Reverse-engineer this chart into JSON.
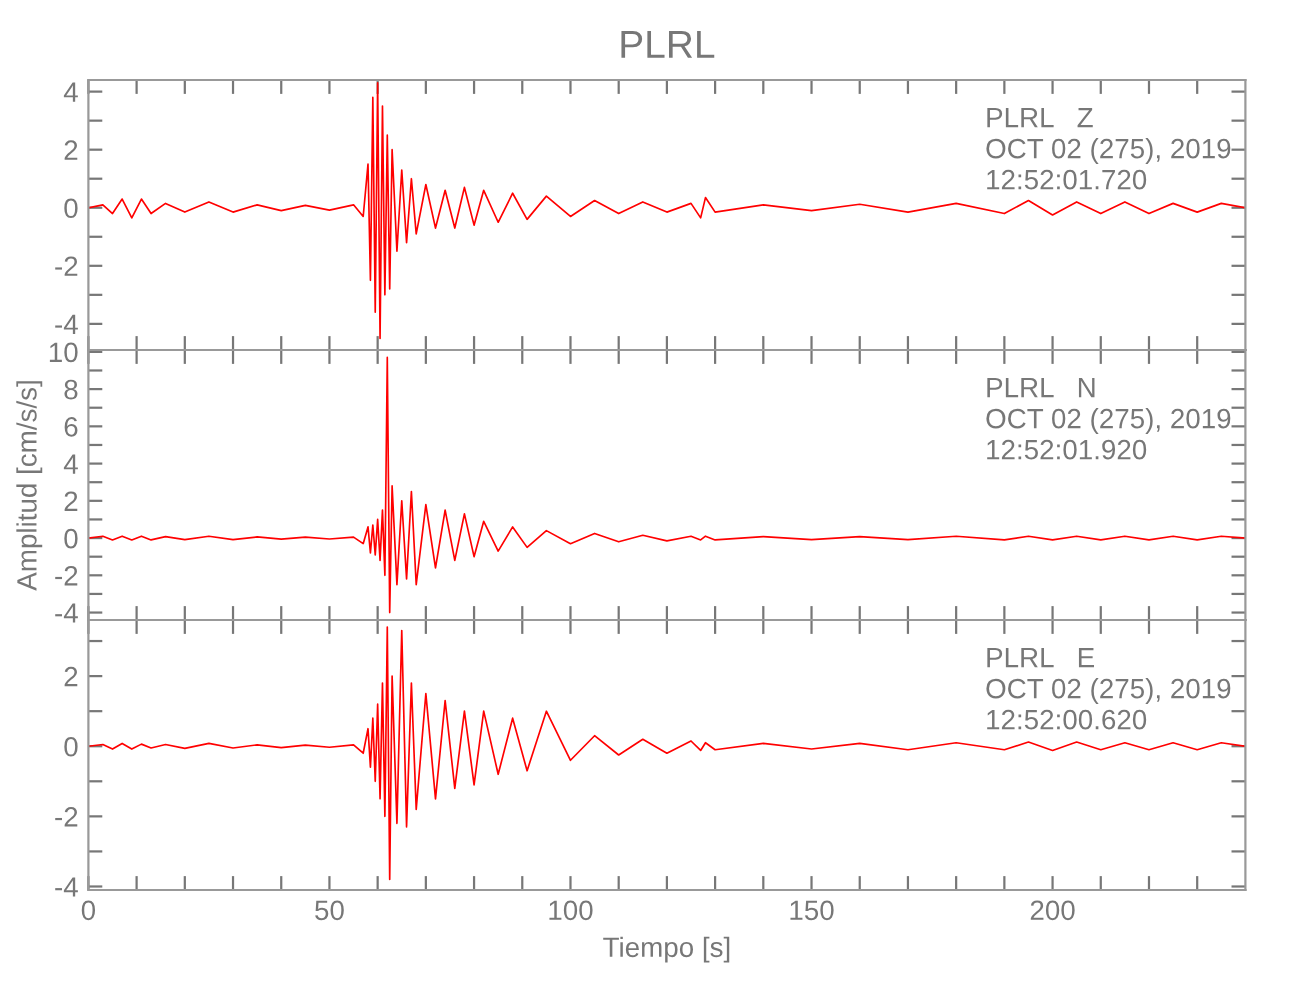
{
  "chart_data": [
    {
      "type": "line",
      "title": "PLRL",
      "annotations": [
        "PLRL   Z",
        "OCT 02 (275), 2019",
        "12:52:01.720"
      ],
      "tick_labels": "y",
      "x": [
        0,
        3,
        5,
        7,
        9,
        11,
        13,
        16,
        20,
        25,
        30,
        35,
        40,
        45,
        50,
        55,
        57,
        58,
        58.5,
        59,
        59.5,
        60,
        60.5,
        61,
        61.5,
        62,
        62.5,
        63,
        64,
        65,
        66,
        67,
        68,
        70,
        72,
        74,
        76,
        78,
        80,
        82,
        85,
        88,
        91,
        95,
        100,
        105,
        110,
        115,
        120,
        125,
        127,
        128,
        130,
        140,
        150,
        160,
        170,
        180,
        190,
        195,
        200,
        205,
        210,
        215,
        220,
        225,
        230,
        235,
        240
      ],
      "series": [
        {
          "color": "#ff0000",
          "values": [
            0,
            0.1,
            -0.2,
            0.3,
            -0.35,
            0.3,
            -0.2,
            0.15,
            -0.15,
            0.2,
            -0.15,
            0.1,
            -0.1,
            0.08,
            -0.08,
            0.1,
            -0.3,
            1.5,
            -2.5,
            3.8,
            -3.6,
            4.3,
            -4.5,
            3.5,
            -3.0,
            2.5,
            -2.8,
            2.0,
            -1.5,
            1.3,
            -1.2,
            1.0,
            -0.9,
            0.8,
            -0.7,
            0.6,
            -0.7,
            0.7,
            -0.6,
            0.6,
            -0.5,
            0.5,
            -0.4,
            0.4,
            -0.3,
            0.25,
            -0.2,
            0.2,
            -0.15,
            0.15,
            -0.35,
            0.35,
            -0.15,
            0.1,
            -0.1,
            0.12,
            -0.15,
            0.15,
            -0.2,
            0.25,
            -0.25,
            0.2,
            -0.2,
            0.2,
            -0.2,
            0.15,
            -0.15,
            0.15,
            0
          ]
        }
      ],
      "xlim": [
        0,
        240
      ],
      "xticks": [
        0,
        {
          "value": 10,
          "label": null
        },
        {
          "value": 20,
          "label": null
        },
        {
          "value": 30,
          "label": null
        },
        {
          "value": 40,
          "label": null
        },
        50,
        {
          "value": 60,
          "label": null
        },
        {
          "value": 70,
          "label": null
        },
        {
          "value": 80,
          "label": null
        },
        {
          "value": 90,
          "label": null
        },
        100,
        {
          "value": 110,
          "label": null
        },
        {
          "value": 120,
          "label": null
        },
        {
          "value": 130,
          "label": null
        },
        {
          "value": 140,
          "label": null
        },
        150,
        {
          "value": 160,
          "label": null
        },
        {
          "value": 170,
          "label": null
        },
        {
          "value": 180,
          "label": null
        },
        {
          "value": 190,
          "label": null
        },
        200,
        {
          "value": 210,
          "label": null
        },
        {
          "value": 220,
          "label": null
        },
        {
          "value": 230,
          "label": null
        }
      ],
      "ylim": [
        -4.9,
        4.4
      ],
      "yticks": [
        -4,
        {
          "value": -3,
          "label": null
        },
        -2,
        {
          "value": -1,
          "label": null
        },
        0,
        {
          "value": 1,
          "label": null
        },
        2,
        {
          "value": 3,
          "label": null
        },
        4
      ]
    },
    {
      "type": "line",
      "ylabel": "Amplitud [cm/s/s]",
      "annotations": [
        "PLRL   N",
        "OCT 02 (275), 2019",
        "12:52:01.920"
      ],
      "tick_labels": "y",
      "x": [
        0,
        3,
        5,
        7,
        9,
        11,
        13,
        16,
        20,
        25,
        30,
        35,
        40,
        45,
        50,
        55,
        57,
        58,
        58.5,
        59,
        59.5,
        60,
        60.5,
        61,
        61.5,
        62,
        62.5,
        63,
        64,
        65,
        66,
        67,
        68,
        70,
        72,
        74,
        76,
        78,
        80,
        82,
        85,
        88,
        91,
        95,
        100,
        105,
        110,
        115,
        120,
        125,
        127,
        128,
        130,
        140,
        150,
        160,
        170,
        180,
        190,
        195,
        200,
        205,
        210,
        215,
        220,
        225,
        230,
        235,
        240
      ],
      "series": [
        {
          "color": "#ff0000",
          "values": [
            0,
            0.1,
            -0.1,
            0.1,
            -0.1,
            0.1,
            -0.1,
            0.08,
            -0.08,
            0.1,
            -0.08,
            0.06,
            -0.06,
            0.05,
            -0.05,
            0.05,
            -0.3,
            0.6,
            -0.8,
            0.7,
            -0.9,
            1.0,
            -1.2,
            1.5,
            -2.0,
            9.7,
            -4.0,
            2.8,
            -2.5,
            2.0,
            -2.2,
            2.5,
            -2.5,
            1.8,
            -1.6,
            1.5,
            -1.2,
            1.3,
            -1.0,
            0.9,
            -0.7,
            0.6,
            -0.5,
            0.4,
            -0.3,
            0.25,
            -0.2,
            0.15,
            -0.15,
            0.1,
            -0.1,
            0.1,
            -0.1,
            0.08,
            -0.08,
            0.08,
            -0.08,
            0.1,
            -0.1,
            0.1,
            -0.1,
            0.1,
            -0.1,
            0.1,
            -0.1,
            0.1,
            -0.1,
            0.1,
            0
          ]
        }
      ],
      "xlim": [
        0,
        240
      ],
      "xticks": [
        0,
        {
          "value": 10,
          "label": null
        },
        {
          "value": 20,
          "label": null
        },
        {
          "value": 30,
          "label": null
        },
        {
          "value": 40,
          "label": null
        },
        50,
        {
          "value": 60,
          "label": null
        },
        {
          "value": 70,
          "label": null
        },
        {
          "value": 80,
          "label": null
        },
        {
          "value": 90,
          "label": null
        },
        100,
        {
          "value": 110,
          "label": null
        },
        {
          "value": 120,
          "label": null
        },
        {
          "value": 130,
          "label": null
        },
        {
          "value": 140,
          "label": null
        },
        150,
        {
          "value": 160,
          "label": null
        },
        {
          "value": 170,
          "label": null
        },
        {
          "value": 180,
          "label": null
        },
        {
          "value": 190,
          "label": null
        },
        200,
        {
          "value": 210,
          "label": null
        },
        {
          "value": 220,
          "label": null
        },
        {
          "value": 230,
          "label": null
        }
      ],
      "ylim": [
        -4.4,
        10.1
      ],
      "yticks": [
        -4,
        {
          "value": -3,
          "label": null
        },
        -2,
        {
          "value": -1,
          "label": null
        },
        0,
        {
          "value": 1,
          "label": null
        },
        2,
        {
          "value": 3,
          "label": null
        },
        4,
        {
          "value": 5,
          "label": null
        },
        6,
        {
          "value": 7,
          "label": null
        },
        8,
        {
          "value": 9,
          "label": null
        },
        10
      ]
    },
    {
      "type": "line",
      "xlabel": "Tiempo [s]",
      "annotations": [
        "PLRL   E",
        "OCT 02 (275), 2019",
        "12:52:00.620"
      ],
      "x": [
        0,
        3,
        5,
        7,
        9,
        11,
        13,
        16,
        20,
        25,
        30,
        35,
        40,
        45,
        50,
        55,
        57,
        58,
        58.5,
        59,
        59.5,
        60,
        60.5,
        61,
        61.5,
        62,
        62.5,
        63,
        64,
        65,
        66,
        67,
        68,
        70,
        72,
        74,
        76,
        78,
        80,
        82,
        85,
        88,
        91,
        95,
        100,
        105,
        110,
        115,
        120,
        125,
        127,
        128,
        130,
        140,
        150,
        160,
        170,
        180,
        190,
        195,
        200,
        205,
        210,
        215,
        220,
        225,
        230,
        235,
        240
      ],
      "series": [
        {
          "color": "#ff0000",
          "values": [
            0,
            0.05,
            -0.08,
            0.08,
            -0.08,
            0.06,
            -0.05,
            0.05,
            -0.06,
            0.08,
            -0.05,
            0.04,
            -0.04,
            0.03,
            -0.03,
            0.04,
            -0.2,
            0.5,
            -0.6,
            0.8,
            -1.0,
            1.2,
            -1.5,
            1.8,
            -2.0,
            3.4,
            -3.8,
            2.0,
            -2.2,
            3.3,
            -2.3,
            1.8,
            -1.8,
            1.5,
            -1.5,
            1.3,
            -1.2,
            1.0,
            -1.1,
            1.0,
            -0.8,
            0.8,
            -0.7,
            1.0,
            -0.4,
            0.3,
            -0.25,
            0.2,
            -0.2,
            0.15,
            -0.12,
            0.1,
            -0.1,
            0.08,
            -0.08,
            0.08,
            -0.1,
            0.1,
            -0.1,
            0.12,
            -0.12,
            0.12,
            -0.1,
            0.1,
            -0.1,
            0.1,
            -0.1,
            0.1,
            0
          ]
        }
      ],
      "xlim": [
        0,
        240
      ],
      "xticks": [
        0,
        {
          "value": 10,
          "label": null
        },
        {
          "value": 20,
          "label": null
        },
        {
          "value": 30,
          "label": null
        },
        {
          "value": 40,
          "label": null
        },
        50,
        {
          "value": 60,
          "label": null
        },
        {
          "value": 70,
          "label": null
        },
        {
          "value": 80,
          "label": null
        },
        {
          "value": 90,
          "label": null
        },
        100,
        {
          "value": 110,
          "label": null
        },
        {
          "value": 120,
          "label": null
        },
        {
          "value": 130,
          "label": null
        },
        {
          "value": 140,
          "label": null
        },
        150,
        {
          "value": 160,
          "label": null
        },
        {
          "value": 170,
          "label": null
        },
        {
          "value": 180,
          "label": null
        },
        {
          "value": 190,
          "label": null
        },
        200,
        {
          "value": 210,
          "label": null
        },
        {
          "value": 220,
          "label": null
        },
        {
          "value": 230,
          "label": null
        }
      ],
      "ylim": [
        -4.1,
        3.6
      ],
      "yticks": [
        -4,
        {
          "value": -3,
          "label": null
        },
        -2,
        {
          "value": -1,
          "label": null
        },
        0,
        {
          "value": 1,
          "label": null
        },
        2,
        {
          "value": 3,
          "label": null
        }
      ]
    }
  ]
}
